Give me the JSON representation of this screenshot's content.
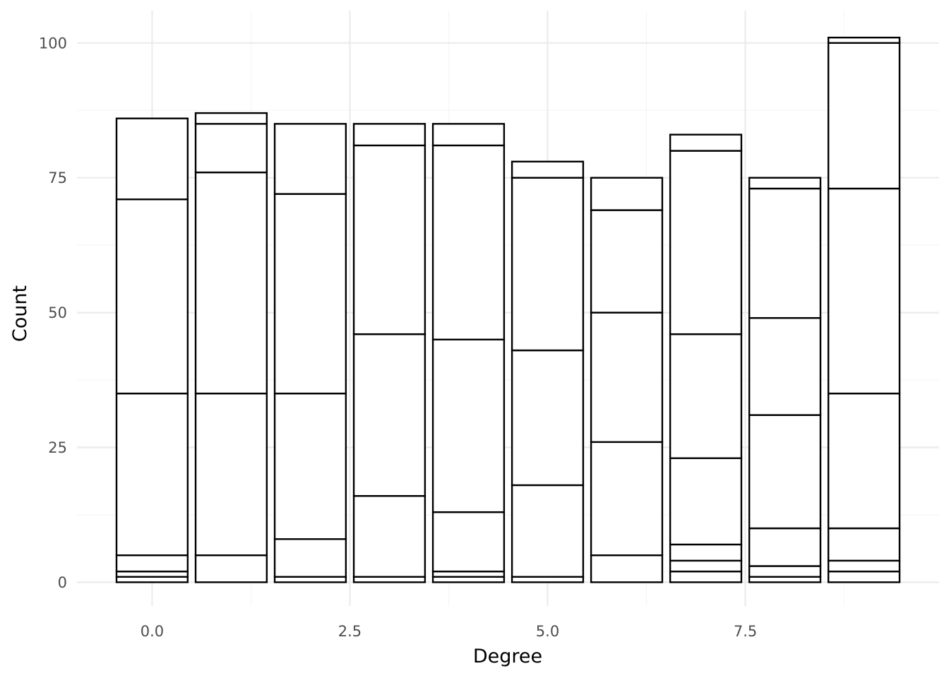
{
  "chart_data": {
    "type": "bar",
    "stacked": true,
    "title": "",
    "xlabel": "Degree",
    "ylabel": "Count",
    "xlim": [
      -0.95,
      9.95
    ],
    "ylim": [
      -4.4,
      106
    ],
    "x_ticks": [
      0,
      2.5,
      5,
      7.5
    ],
    "x_tick_labels": [
      "0.0",
      "2.5",
      "5.0",
      "7.5"
    ],
    "y_ticks": [
      0,
      25,
      50,
      75,
      100
    ],
    "y_tick_labels": [
      "0",
      "25",
      "50",
      "75",
      "100"
    ],
    "grid": true,
    "legend": "none",
    "bar_width": 0.9,
    "bars": [
      {
        "x": 0,
        "total": 86,
        "boundaries": [
          0,
          1,
          2,
          5,
          35,
          71,
          86
        ]
      },
      {
        "x": 1,
        "total": 87,
        "boundaries": [
          0,
          5,
          35,
          76,
          85,
          87
        ]
      },
      {
        "x": 2,
        "total": 85,
        "boundaries": [
          0,
          1,
          8,
          35,
          72,
          85
        ]
      },
      {
        "x": 3,
        "total": 85,
        "boundaries": [
          0,
          1,
          16,
          46,
          81,
          85
        ]
      },
      {
        "x": 4,
        "total": 85,
        "boundaries": [
          0,
          1,
          2,
          13,
          45,
          81,
          85
        ]
      },
      {
        "x": 5,
        "total": 78,
        "boundaries": [
          0,
          1,
          18,
          43,
          75,
          78
        ]
      },
      {
        "x": 6,
        "total": 75,
        "boundaries": [
          0,
          5,
          26,
          50,
          69,
          75
        ]
      },
      {
        "x": 7,
        "total": 83,
        "boundaries": [
          0,
          2,
          4,
          7,
          23,
          46,
          80,
          83
        ]
      },
      {
        "x": 8,
        "total": 75,
        "boundaries": [
          0,
          1,
          3,
          10,
          31,
          49,
          73,
          75
        ]
      },
      {
        "x": 9,
        "total": 101,
        "boundaries": [
          0,
          2,
          4,
          10,
          35,
          73,
          100,
          101
        ]
      }
    ],
    "colors": {
      "bar_fill": "#ffffff",
      "bar_outline": "#000000",
      "grid_major": "#ebebeb",
      "grid_minor": "#f5f5f5"
    }
  }
}
